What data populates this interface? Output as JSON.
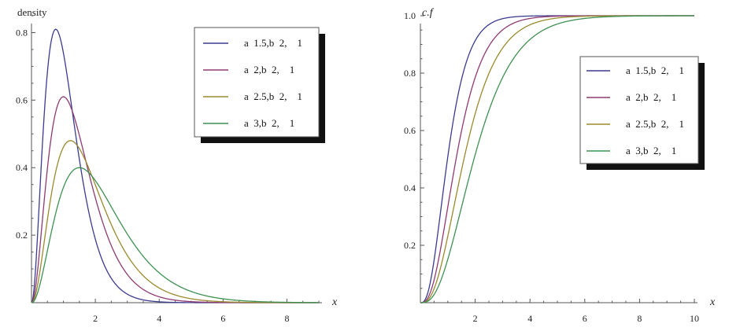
{
  "chart_data": [
    {
      "id": "pdf",
      "type": "line",
      "ylabel": "density",
      "xlabel": "x",
      "xlim": [
        0,
        9
      ],
      "ylim": [
        0,
        0.85
      ],
      "xticks": [
        2,
        4,
        6,
        8
      ],
      "yticks": [
        0.2,
        0.4,
        0.6,
        0.8
      ],
      "grid": false,
      "legend_position": "top-right",
      "series": [
        {
          "name": "a  1.5,b  2,    1",
          "color": "#3b3b8f",
          "peak_x": 0.76,
          "peak_y": 0.81
        },
        {
          "name": "a  2,b  2,    1",
          "color": "#8f3b72",
          "peak_x": 1.0,
          "peak_y": 0.61
        },
        {
          "name": "a  2.5,b  2,    1",
          "color": "#9a8a2e",
          "peak_x": 1.22,
          "peak_y": 0.48
        },
        {
          "name": "a  3,b  2,    1",
          "color": "#3f9152",
          "peak_x": 1.5,
          "peak_y": 0.4
        }
      ]
    },
    {
      "id": "cdf",
      "type": "line",
      "ylabel": "c.f",
      "xlabel": "x",
      "xlim": [
        0,
        10
      ],
      "ylim": [
        0,
        1.0
      ],
      "xticks": [
        2,
        4,
        6,
        8,
        10
      ],
      "yticks": [
        0.2,
        0.4,
        0.6,
        0.8,
        1.0
      ],
      "ytick_labels": [
        "0.2",
        "0.4",
        "0.6",
        "0.8",
        "1.0"
      ],
      "grid": false,
      "legend_position": "top-right",
      "series": [
        {
          "name": "a  1.5,b  2,    1",
          "color": "#3b3b8f"
        },
        {
          "name": "a  2,b  2,    1",
          "color": "#8f3b72"
        },
        {
          "name": "a  2.5,b  2,    1",
          "color": "#9a8a2e"
        },
        {
          "name": "a  3,b  2,    1",
          "color": "#3f9152"
        }
      ]
    }
  ]
}
